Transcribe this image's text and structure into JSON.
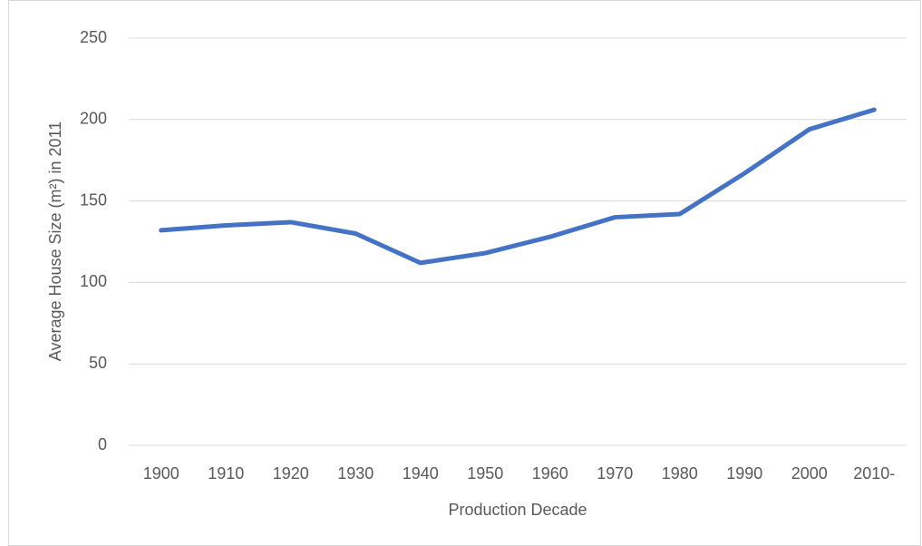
{
  "chart_data": {
    "type": "line",
    "categories": [
      "1900",
      "1910",
      "1920",
      "1930",
      "1940",
      "1950",
      "1960",
      "1970",
      "1980",
      "1990",
      "2000",
      "2010-"
    ],
    "series": [
      {
        "name": "Average House Size",
        "color": "#4472c4",
        "values": [
          132,
          135,
          137,
          130,
          112,
          118,
          128,
          140,
          142,
          167,
          194,
          206
        ]
      }
    ],
    "x_label": "Production Decade",
    "y_label": "Average House Size  (m²) in 2011",
    "ylim": [
      0,
      250
    ],
    "yticks": [
      0,
      50,
      100,
      150,
      200,
      250
    ],
    "grid": true
  }
}
